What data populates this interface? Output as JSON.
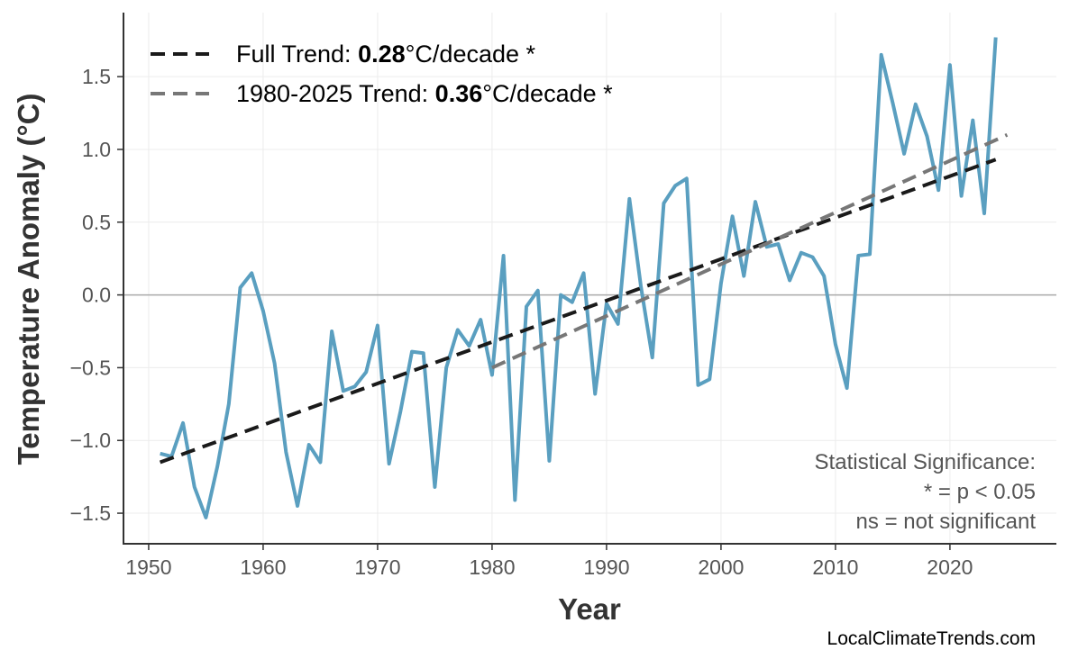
{
  "chart_data": {
    "type": "line",
    "title": "",
    "xlabel": "Year",
    "ylabel": "Temperature Anomaly (°C)",
    "xlim": [
      1947.8,
      2029.3
    ],
    "ylim": [
      -1.71,
      1.94
    ],
    "xticks": [
      1950,
      1960,
      1970,
      1980,
      1990,
      2000,
      2010,
      2020
    ],
    "yticks": [
      -1.5,
      -1.0,
      -0.5,
      0.0,
      0.5,
      1.0,
      1.5
    ],
    "ytick_labels": [
      "−1.5",
      "−1.0",
      "−0.5",
      "0.0",
      "0.5",
      "1.0",
      "1.5"
    ],
    "grid": true,
    "zero_line": true,
    "series_color": "#5a9fc0",
    "x": [
      1951,
      1952,
      1953,
      1954,
      1955,
      1956,
      1957,
      1958,
      1959,
      1960,
      1961,
      1962,
      1963,
      1964,
      1965,
      1966,
      1967,
      1968,
      1969,
      1970,
      1971,
      1972,
      1973,
      1974,
      1975,
      1976,
      1977,
      1978,
      1979,
      1980,
      1981,
      1982,
      1983,
      1984,
      1985,
      1986,
      1987,
      1988,
      1989,
      1990,
      1991,
      1992,
      1993,
      1994,
      1995,
      1996,
      1997,
      1998,
      1999,
      2000,
      2001,
      2002,
      2003,
      2004,
      2005,
      2006,
      2007,
      2008,
      2009,
      2010,
      2011,
      2012,
      2013,
      2014,
      2015,
      2016,
      2017,
      2018,
      2019,
      2020,
      2021,
      2022,
      2023,
      2024
    ],
    "y": [
      -1.09,
      -1.11,
      -0.88,
      -1.32,
      -1.53,
      -1.18,
      -0.75,
      0.05,
      0.15,
      -0.11,
      -0.47,
      -1.08,
      -1.45,
      -1.03,
      -1.15,
      -0.25,
      -0.66,
      -0.63,
      -0.53,
      -0.21,
      -1.16,
      -0.8,
      -0.39,
      -0.4,
      -1.32,
      -0.5,
      -0.24,
      -0.35,
      -0.17,
      -0.55,
      0.27,
      -1.41,
      -0.08,
      0.03,
      -1.14,
      0.0,
      -0.05,
      0.15,
      -0.68,
      -0.06,
      -0.2,
      0.66,
      0.06,
      -0.43,
      0.63,
      0.75,
      0.8,
      -0.62,
      -0.58,
      0.08,
      0.54,
      0.13,
      0.64,
      0.33,
      0.35,
      0.1,
      0.29,
      0.26,
      0.13,
      -0.34,
      -0.64,
      0.27,
      0.28,
      1.65,
      1.32,
      0.97,
      1.31,
      1.09,
      0.72,
      1.58,
      0.68,
      1.2,
      0.56,
      1.77
    ],
    "trends": [
      {
        "label_prefix": "Full Trend: ",
        "value": "0.28",
        "label_suffix": "°C/decade *",
        "color": "#1a1a1a",
        "x": [
          1951,
          2024
        ],
        "y": [
          -1.15,
          0.93
        ]
      },
      {
        "label_prefix": "1980-2025 Trend: ",
        "value": "0.36",
        "label_suffix": "°C/decade *",
        "color": "#777777",
        "x": [
          1980,
          2025
        ],
        "y": [
          -0.5,
          1.1
        ]
      }
    ],
    "legend_position": "top-left",
    "annotation": [
      "Statistical Significance:",
      "* = p < 0.05",
      "ns = not significant"
    ],
    "credit": "LocalClimateTrends.com"
  }
}
